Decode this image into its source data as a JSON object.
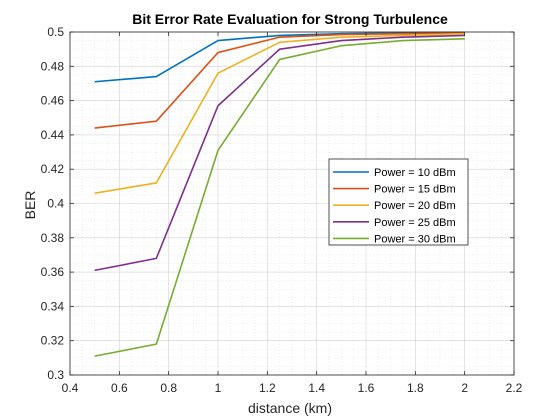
{
  "chart_data": {
    "type": "line",
    "title": "Bit Error Rate Evaluation for Strong Turbulence",
    "xlabel": "distance (km)",
    "ylabel": "BER",
    "xlim": [
      0.4,
      2.2
    ],
    "ylim": [
      0.3,
      0.5
    ],
    "xticks": [
      "0.4",
      "0.6",
      "0.8",
      "1",
      "1.2",
      "1.4",
      "1.6",
      "1.8",
      "2",
      "2.2"
    ],
    "yticks": [
      "0.3",
      "0.32",
      "0.34",
      "0.36",
      "0.38",
      "0.4",
      "0.42",
      "0.44",
      "0.46",
      "0.48",
      "0.5"
    ],
    "grid": true,
    "minor_grid": true,
    "legend_position": "right",
    "x": [
      0.5,
      0.75,
      1.0,
      1.25,
      1.5,
      1.75,
      2.0
    ],
    "series": [
      {
        "name": "Power = 10 dBm",
        "color": "#0072BD",
        "values": [
          0.471,
          0.474,
          0.495,
          0.498,
          0.499,
          0.4995,
          0.4998
        ]
      },
      {
        "name": "Power = 15 dBm",
        "color": "#D95319",
        "values": [
          0.444,
          0.448,
          0.488,
          0.497,
          0.4985,
          0.499,
          0.4995
        ]
      },
      {
        "name": "Power = 20 dBm",
        "color": "#EDB120",
        "values": [
          0.406,
          0.412,
          0.476,
          0.494,
          0.497,
          0.498,
          0.499
        ]
      },
      {
        "name": "Power = 25 dBm",
        "color": "#7E2F8E",
        "values": [
          0.361,
          0.368,
          0.457,
          0.49,
          0.495,
          0.497,
          0.498
        ]
      },
      {
        "name": "Power = 30 dBm",
        "color": "#77AC30",
        "values": [
          0.311,
          0.318,
          0.431,
          0.484,
          0.492,
          0.495,
          0.496
        ]
      }
    ]
  }
}
